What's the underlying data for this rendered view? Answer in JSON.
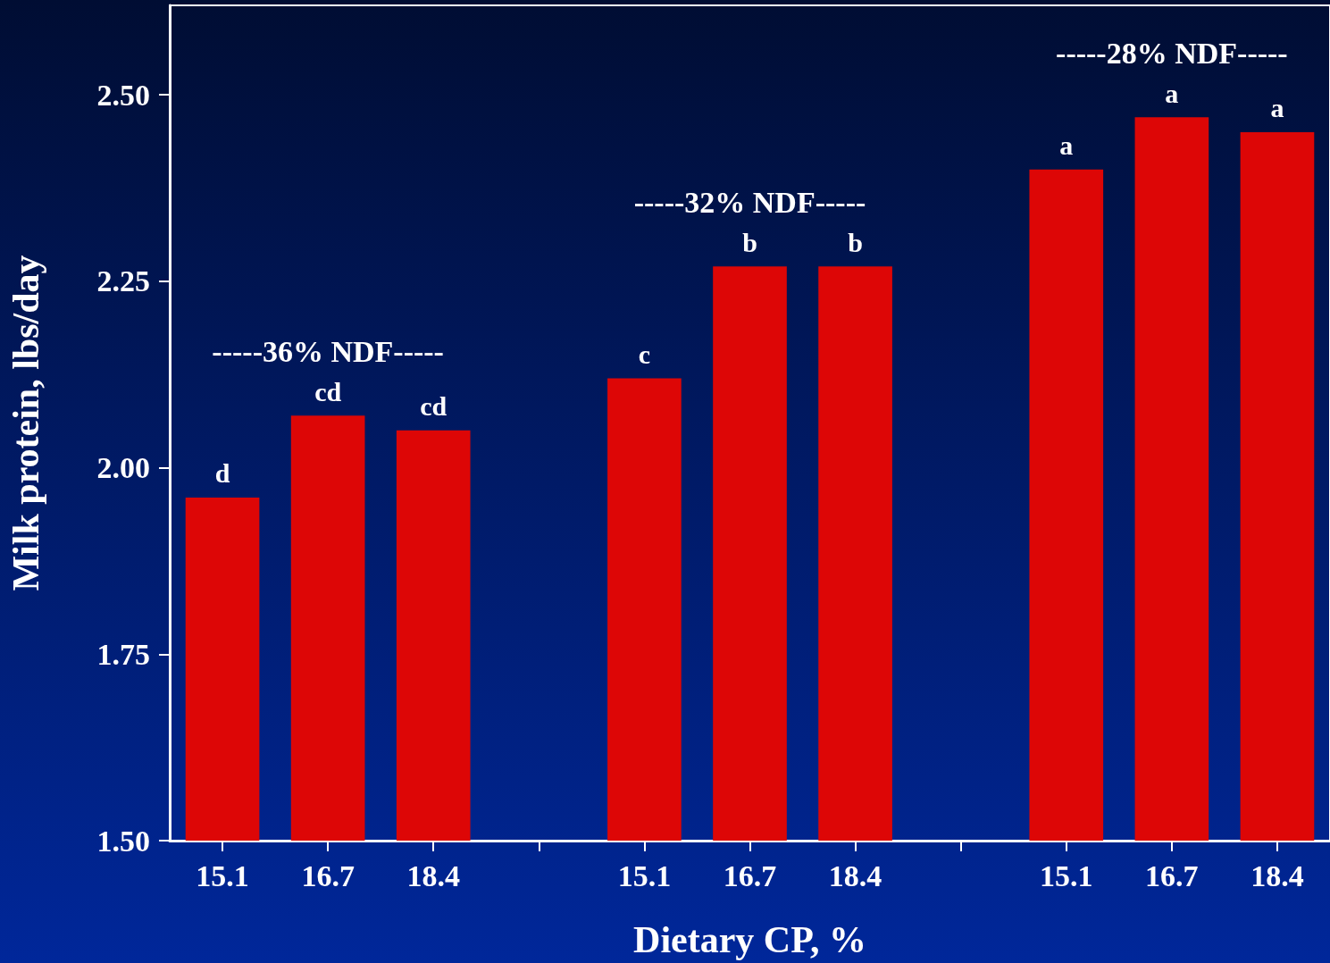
{
  "chart_data": {
    "type": "bar",
    "xlabel": "Dietary CP, %",
    "ylabel": "Milk protein, lbs/day",
    "categories": [
      "15.1",
      "16.7",
      "18.4",
      null,
      "15.1",
      "16.7",
      "18.4",
      null,
      "15.1",
      "16.7",
      "18.4"
    ],
    "series": [
      {
        "color": "#dd0606",
        "values": [
          1.96,
          2.07,
          2.05,
          null,
          2.12,
          2.27,
          2.27,
          null,
          2.4,
          2.47,
          2.45
        ],
        "value_labels": [
          "d",
          "cd",
          "cd",
          null,
          "c",
          "b",
          "b",
          null,
          "a",
          "a",
          "a"
        ]
      }
    ],
    "ylim": [
      1.5,
      2.62
    ],
    "yticks": [
      {
        "value": 1.5,
        "label": "1.50"
      },
      {
        "value": 1.75,
        "label": "1.75"
      },
      {
        "value": 2.0,
        "label": "2.00"
      },
      {
        "value": 2.25,
        "label": "2.25"
      },
      {
        "value": 2.5,
        "label": "2.50"
      }
    ],
    "annotations": [
      "-----36% NDF-----",
      "-----32% NDF-----",
      "-----28% NDF-----"
    ],
    "grid": false
  }
}
